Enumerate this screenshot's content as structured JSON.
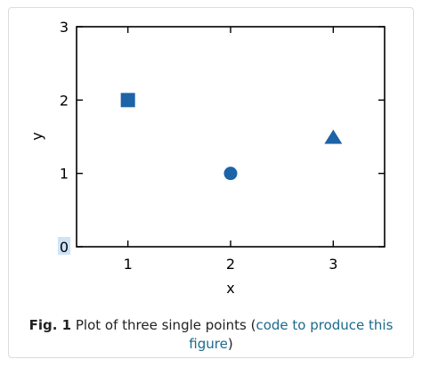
{
  "chart_data": {
    "type": "scatter",
    "x_range": [
      0.5,
      3.5
    ],
    "y_range": [
      0,
      3
    ],
    "xlabel": "x",
    "ylabel": "y",
    "xticks": [
      "1",
      "2",
      "3"
    ],
    "yticks": [
      "0",
      "1",
      "2",
      "3"
    ],
    "grid": false,
    "legend": "none",
    "marker_color": "#1c63a8",
    "points": [
      {
        "x": 1,
        "y": 2,
        "marker": "square"
      },
      {
        "x": 2,
        "y": 1,
        "marker": "circle"
      },
      {
        "x": 3,
        "y": 1.5,
        "marker": "triangle"
      }
    ]
  },
  "caption": {
    "fig_label": "Fig. 1",
    "text": "Plot of three single points (",
    "link": "code to produce this figure",
    "close": ")"
  },
  "colors": {
    "axis": "#000000",
    "link": "#1a6b8c",
    "highlight": "#cfe3f7"
  }
}
